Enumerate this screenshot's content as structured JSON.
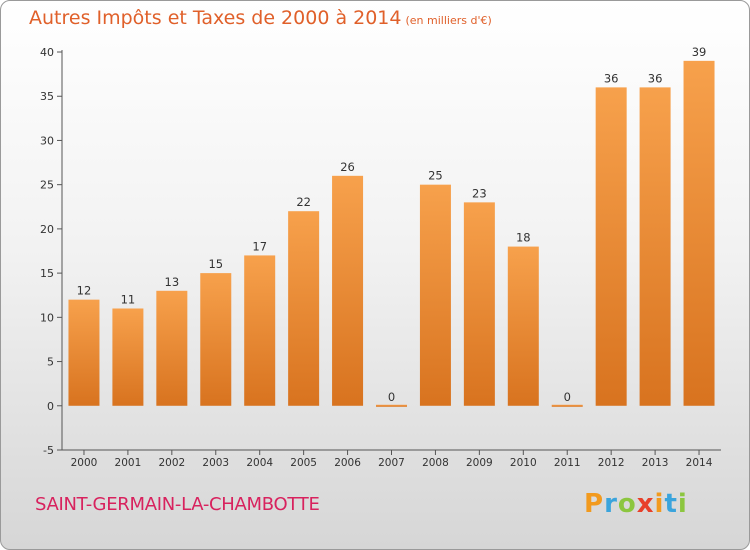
{
  "title": "Autres Impôts et Taxes de 2000 à 2014",
  "subtitle": "(en milliers d'€)",
  "commune": "SAINT-GERMAIN-LA-CHAMBOTTE",
  "logo": {
    "text": "Proxiti",
    "letters": [
      "P",
      "r",
      "o",
      "x",
      "i",
      "t",
      "i"
    ]
  },
  "colors": {
    "bar_light": "#f7a14c",
    "bar_dark": "#d8731f",
    "title": "#e0602a",
    "commune": "#d8225e"
  },
  "chart_data": {
    "type": "bar",
    "categories": [
      "2000",
      "2001",
      "2002",
      "2003",
      "2004",
      "2005",
      "2006",
      "2007",
      "2008",
      "2009",
      "2010",
      "2011",
      "2012",
      "2013",
      "2014"
    ],
    "values": [
      12,
      11,
      13,
      15,
      17,
      22,
      26,
      0,
      25,
      23,
      18,
      0,
      36,
      36,
      39
    ],
    "title": "Autres Impôts et Taxes de 2000 à 2014",
    "ylim": [
      -5,
      40
    ],
    "yticks": [
      -5,
      0,
      5,
      10,
      15,
      20,
      25,
      30,
      35,
      40
    ],
    "grid": false
  }
}
